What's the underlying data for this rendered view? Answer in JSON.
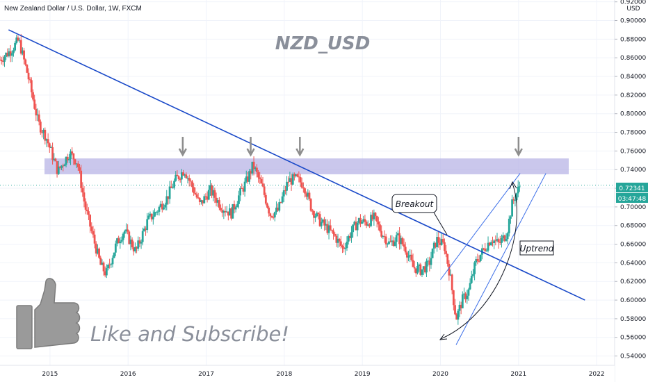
{
  "header": {
    "title": "New Zealand Dollar / U.S. Dollar, 1W, FXCM",
    "currency": "USD",
    "watermark": "NZD_USD"
  },
  "price_tags": {
    "last_price": "0.72341",
    "countdown": "03:47:48",
    "last_price_color": "#26a69a"
  },
  "annotations": {
    "breakout": "Breakout",
    "uptrend": "Uptrend",
    "subscribe": "Like and Subscribe!"
  },
  "colors": {
    "up": "#26a69a",
    "down": "#ef5350",
    "trendline": "#1848c8",
    "zone": "#b8b4e6"
  },
  "chart_data": {
    "type": "candlestick",
    "title": "New Zealand Dollar / U.S. Dollar, 1W, FXCM",
    "x_range": [
      2014.36,
      2022.23
    ],
    "y_range": [
      0.53,
      0.922
    ],
    "x_ticks": [
      "2015",
      "2016",
      "2017",
      "2018",
      "2019",
      "2020",
      "2021",
      "2022"
    ],
    "y_ticks": [
      "0.92000",
      "0.90000",
      "0.88000",
      "0.86000",
      "0.84000",
      "0.82000",
      "0.80000",
      "0.78000",
      "0.76000",
      "0.74000",
      "0.72000",
      "0.70000",
      "0.68000",
      "0.66000",
      "0.64000",
      "0.62000",
      "0.60000",
      "0.58000",
      "0.56000",
      "0.54000"
    ],
    "price_path": [
      [
        2014.36,
        0.858
      ],
      [
        2014.5,
        0.868
      ],
      [
        2014.6,
        0.879
      ],
      [
        2014.72,
        0.84
      ],
      [
        2014.85,
        0.79
      ],
      [
        2014.95,
        0.775
      ],
      [
        2015.1,
        0.738
      ],
      [
        2015.25,
        0.758
      ],
      [
        2015.35,
        0.748
      ],
      [
        2015.45,
        0.7
      ],
      [
        2015.55,
        0.668
      ],
      [
        2015.65,
        0.637
      ],
      [
        2015.72,
        0.628
      ],
      [
        2015.85,
        0.66
      ],
      [
        2015.95,
        0.675
      ],
      [
        2016.1,
        0.652
      ],
      [
        2016.25,
        0.685
      ],
      [
        2016.35,
        0.694
      ],
      [
        2016.5,
        0.71
      ],
      [
        2016.6,
        0.728
      ],
      [
        2016.72,
        0.74
      ],
      [
        2016.82,
        0.722
      ],
      [
        2016.92,
        0.702
      ],
      [
        2017.05,
        0.718
      ],
      [
        2017.2,
        0.7
      ],
      [
        2017.32,
        0.693
      ],
      [
        2017.42,
        0.712
      ],
      [
        2017.52,
        0.728
      ],
      [
        2017.6,
        0.745
      ],
      [
        2017.72,
        0.72
      ],
      [
        2017.82,
        0.692
      ],
      [
        2017.92,
        0.696
      ],
      [
        2018.05,
        0.728
      ],
      [
        2018.15,
        0.73
      ],
      [
        2018.25,
        0.724
      ],
      [
        2018.35,
        0.698
      ],
      [
        2018.45,
        0.685
      ],
      [
        2018.55,
        0.677
      ],
      [
        2018.65,
        0.668
      ],
      [
        2018.75,
        0.655
      ],
      [
        2018.85,
        0.672
      ],
      [
        2018.95,
        0.685
      ],
      [
        2019.05,
        0.683
      ],
      [
        2019.15,
        0.688
      ],
      [
        2019.25,
        0.672
      ],
      [
        2019.35,
        0.66
      ],
      [
        2019.45,
        0.668
      ],
      [
        2019.55,
        0.656
      ],
      [
        2019.65,
        0.635
      ],
      [
        2019.75,
        0.632
      ],
      [
        2019.85,
        0.638
      ],
      [
        2019.95,
        0.665
      ],
      [
        2020.05,
        0.658
      ],
      [
        2020.12,
        0.628
      ],
      [
        2020.2,
        0.58
      ],
      [
        2020.28,
        0.6
      ],
      [
        2020.36,
        0.61
      ],
      [
        2020.45,
        0.64
      ],
      [
        2020.55,
        0.654
      ],
      [
        2020.65,
        0.666
      ],
      [
        2020.75,
        0.66
      ],
      [
        2020.85,
        0.672
      ],
      [
        2020.92,
        0.704
      ],
      [
        2021.02,
        0.7234
      ]
    ],
    "resistance_zone": [
      0.735,
      0.752
    ],
    "down_trendline": [
      [
        2014.47,
        0.89
      ],
      [
        2021.85,
        0.6
      ]
    ],
    "channel_lines": [
      [
        [
          2020.0,
          0.622
        ],
        [
          2021.02,
          0.736
        ]
      ],
      [
        [
          2020.2,
          0.552
        ],
        [
          2021.35,
          0.736
        ]
      ]
    ],
    "arrow_markers_x": [
      2016.7,
      2017.57,
      2018.2,
      2021.0
    ],
    "last_price": 0.72341,
    "annotations": [
      "Breakout",
      "Uptrend",
      "Like and Subscribe!"
    ]
  }
}
